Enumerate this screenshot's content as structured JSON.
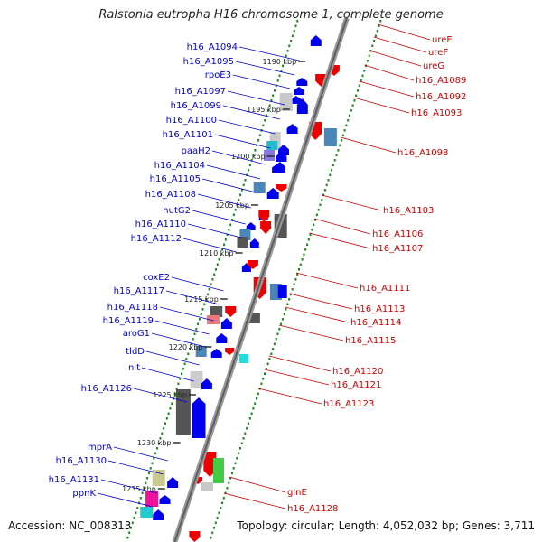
{
  "title": "Ralstonia eutropha H16 chromosome 1, complete genome",
  "footer": {
    "accession": "Accession: NC_008313",
    "summary": "Topology: circular; Length: 4,052,032 bp; Genes: 3,711"
  },
  "colors": {
    "forward_label": "#0000cc",
    "reverse_label": "#cc0000",
    "backbone": "#7a7a7a",
    "gc_dots": "#1a8a1a"
  },
  "ticks": [
    "1190 kbp",
    "1195 kbp",
    "1200 kbp",
    "1205 kbp",
    "1210 kbp",
    "1215 kbp",
    "1220 kbp",
    "1225 kbp",
    "1230 kbp",
    "1235 kbp"
  ],
  "left_labels": [
    "h16_A1094",
    "h16_A1095",
    "rpoE3",
    "h16_A1097",
    "h16_A1099",
    "h16_A1100",
    "h16_A1101",
    "paaH2",
    "h16_A1104",
    "h16_A1105",
    "h16_A1108",
    "hutG2",
    "h16_A1110",
    "h16_A1112",
    "coxE2",
    "h16_A1117",
    "h16_A1118",
    "h16_A1119",
    "aroG1",
    "tldD",
    "nit",
    "h16_A1126",
    "mprA",
    "h16_A1130",
    "h16_A1131",
    "ppnK"
  ],
  "right_labels": [
    "ureE",
    "ureF",
    "ureG",
    "h16_A1089",
    "h16_A1092",
    "h16_A1093",
    "h16_A1098",
    "h16_A1103",
    "h16_A1106",
    "h16_A1107",
    "h16_A1111",
    "h16_A1113",
    "h16_A1114",
    "h16_A1115",
    "h16_A1120",
    "h16_A1121",
    "h16_A1123",
    "glnE",
    "h16_A1128"
  ]
}
